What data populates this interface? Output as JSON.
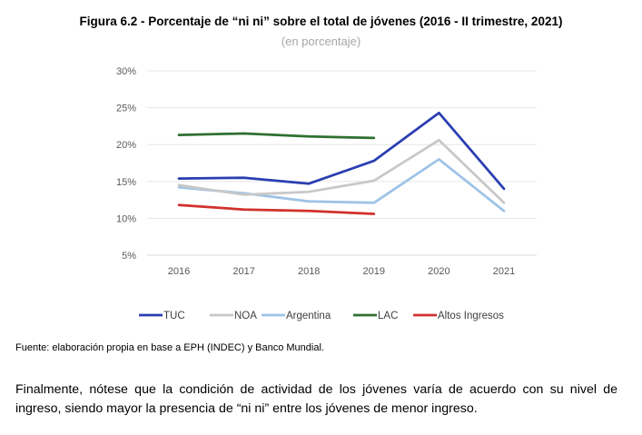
{
  "figure": {
    "title": "Figura 6.2 - Porcentaje de “ni ni” sobre el total de jóvenes (2016 - II trimestre, 2021)",
    "subtitle": "(en porcentaje)"
  },
  "chart_data": {
    "type": "line",
    "title": "Figura 6.2 - Porcentaje de “ni ni” sobre el total de jóvenes (2016 - II trimestre, 2021)",
    "subtitle": "(en porcentaje)",
    "x": [
      "2016",
      "2017",
      "2018",
      "2019",
      "2020",
      "2021"
    ],
    "ylim": [
      5,
      30
    ],
    "yticks": [
      5,
      10,
      15,
      20,
      25,
      30
    ],
    "ytick_labels": [
      "5%",
      "10%",
      "15%",
      "20%",
      "25%",
      "30%"
    ],
    "grid": true,
    "legend_position": "bottom",
    "series": [
      {
        "name": "TUC",
        "color": "#2a3eb1",
        "values": [
          15.4,
          15.5,
          14.7,
          17.8,
          24.3,
          14.0
        ]
      },
      {
        "name": "NOA",
        "color": "#c8c8c8",
        "values": [
          14.5,
          13.2,
          13.6,
          15.1,
          20.6,
          12.1
        ]
      },
      {
        "name": "Argentina",
        "color": "#9dc3e6",
        "values": [
          14.2,
          13.4,
          12.3,
          12.1,
          18.0,
          11.0
        ]
      },
      {
        "name": "LAC",
        "color": "#2e7030",
        "values": [
          21.3,
          21.5,
          21.1,
          20.9,
          null,
          null
        ]
      },
      {
        "name": "Altos Ingresos",
        "color": "#d0312d",
        "values": [
          11.8,
          11.2,
          11.0,
          10.6,
          null,
          null
        ]
      }
    ]
  },
  "source_note": "Fuente: elaboración propia en base a EPH (INDEC) y Banco Mundial.",
  "paragraph": "Finalmente, nótese que la condición de actividad de los jóvenes varía de acuerdo con su nivel de ingreso, siendo mayor la presencia de “ni ni” entre los jóvenes de menor ingreso."
}
